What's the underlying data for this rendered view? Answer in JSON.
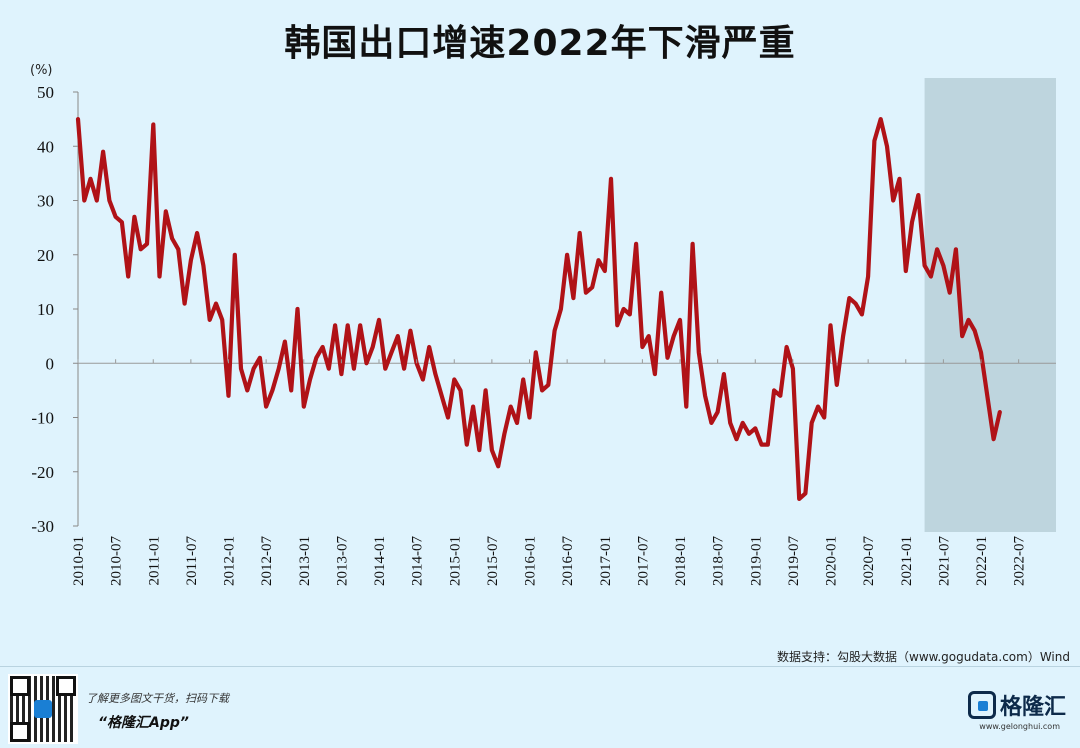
{
  "page": {
    "title": "韩国出口增速2022年下滑严重",
    "source": "数据支持：勾股大数据（www.gogudata.com）Wind",
    "promo_line1": "了解更多图文干货，扫码下载",
    "promo_line2": "“格隆汇App”",
    "brand_name": "格隆汇",
    "brand_url": "www.gelonghui.com"
  },
  "chart_data": {
    "type": "line",
    "title": "韩国出口增速2022年下滑严重",
    "ylabel": "(%)",
    "ylim": [
      -30,
      50
    ],
    "yticks": [
      -30,
      -20,
      -10,
      0,
      10,
      20,
      30,
      40,
      50
    ],
    "xlim": [
      "2010-01",
      "2022-12"
    ],
    "xtick_labels": [
      "2010-01",
      "2010-07",
      "2011-01",
      "2011-07",
      "2012-01",
      "2012-07",
      "2013-01",
      "2013-07",
      "2014-01",
      "2014-07",
      "2015-01",
      "2015-07",
      "2016-01",
      "2016-07",
      "2017-01",
      "2017-07",
      "2018-01",
      "2018-07",
      "2019-01",
      "2019-07",
      "2020-01",
      "2020-07",
      "2021-01",
      "2021-07",
      "2022-01",
      "2022-07"
    ],
    "shaded_region": [
      "2021-04",
      "2022-12"
    ],
    "line_color": "#b01217",
    "shade_color": "#b9cfd8",
    "grid": false,
    "series": [
      {
        "values": [
          45,
          30,
          34,
          30,
          39,
          30,
          27,
          26,
          16,
          27,
          21,
          22,
          44,
          16,
          28,
          23,
          21,
          11,
          19,
          24,
          18,
          8,
          11,
          8,
          -6,
          20,
          -1,
          -5,
          -1,
          1,
          -8,
          -5,
          -1,
          4,
          -5,
          10,
          -8,
          -3,
          1,
          3,
          -1,
          7,
          -2,
          7,
          -1,
          7,
          0,
          3,
          8,
          -1,
          2,
          5,
          -1,
          6,
          0,
          -3,
          3,
          -2,
          -6,
          -10,
          -3,
          -5,
          -15,
          -8,
          -16,
          -5,
          -16,
          -19,
          -13,
          -8,
          -11,
          -3,
          -10,
          2,
          -5,
          -4,
          6,
          10,
          20,
          12,
          24,
          13,
          14,
          19,
          17,
          34,
          7,
          10,
          9,
          22,
          3,
          5,
          -2,
          13,
          1,
          5,
          8,
          -8,
          22,
          2,
          -6,
          -11,
          -9,
          -2,
          -11,
          -14,
          -11,
          -13,
          -12,
          -15,
          -15,
          -5,
          -6,
          3,
          -1,
          -25,
          -24,
          -11,
          -8,
          -10,
          7,
          -4,
          5,
          12,
          11,
          9,
          16,
          41,
          45,
          40,
          30,
          34,
          17,
          26,
          31,
          18,
          16,
          21,
          18,
          13,
          21,
          5,
          8,
          6,
          2,
          -6,
          -14,
          -9
        ]
      }
    ]
  }
}
